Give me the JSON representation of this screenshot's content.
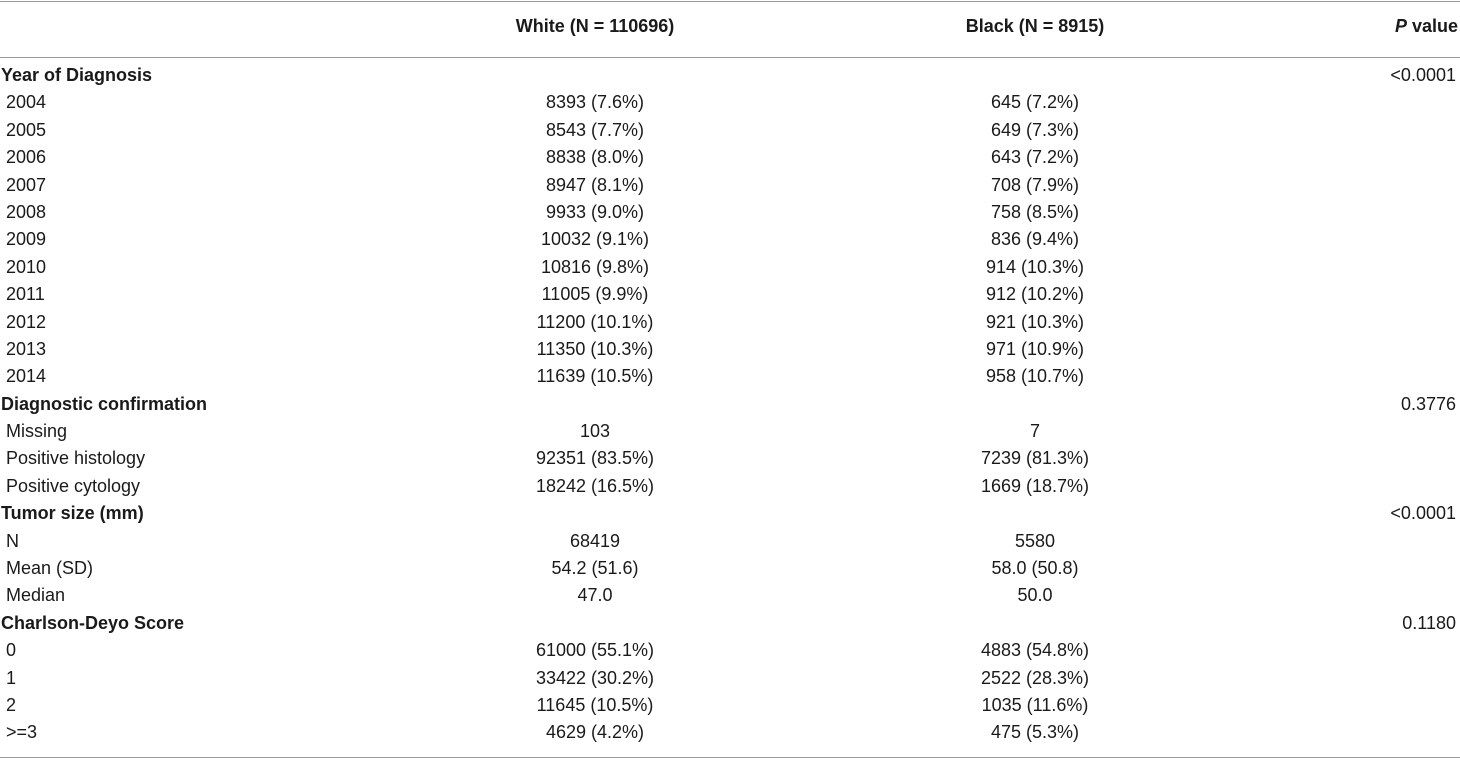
{
  "header": {
    "col_white": "White (N = 110696)",
    "col_black": "Black (N = 8915)",
    "col_p_italic": "P",
    "col_p_rest": " value"
  },
  "rows": [
    {
      "type": "section",
      "label": "Year of Diagnosis",
      "white": "",
      "black": "",
      "p": "<0.0001"
    },
    {
      "type": "item",
      "label": "2004",
      "white": "8393 (7.6%)",
      "black": "645 (7.2%)",
      "p": ""
    },
    {
      "type": "item",
      "label": "2005",
      "white": "8543 (7.7%)",
      "black": "649 (7.3%)",
      "p": ""
    },
    {
      "type": "item",
      "label": "2006",
      "white": "8838 (8.0%)",
      "black": "643 (7.2%)",
      "p": ""
    },
    {
      "type": "item",
      "label": "2007",
      "white": "8947 (8.1%)",
      "black": "708 (7.9%)",
      "p": ""
    },
    {
      "type": "item",
      "label": "2008",
      "white": "9933 (9.0%)",
      "black": "758 (8.5%)",
      "p": ""
    },
    {
      "type": "item",
      "label": "2009",
      "white": "10032 (9.1%)",
      "black": "836 (9.4%)",
      "p": ""
    },
    {
      "type": "item",
      "label": "2010",
      "white": "10816 (9.8%)",
      "black": "914 (10.3%)",
      "p": ""
    },
    {
      "type": "item",
      "label": "2011",
      "white": "11005 (9.9%)",
      "black": "912 (10.2%)",
      "p": ""
    },
    {
      "type": "item",
      "label": "2012",
      "white": "11200 (10.1%)",
      "black": "921 (10.3%)",
      "p": ""
    },
    {
      "type": "item",
      "label": "2013",
      "white": "11350 (10.3%)",
      "black": "971 (10.9%)",
      "p": ""
    },
    {
      "type": "item",
      "label": "2014",
      "white": "11639 (10.5%)",
      "black": "958 (10.7%)",
      "p": ""
    },
    {
      "type": "section",
      "label": "Diagnostic confirmation",
      "white": "",
      "black": "",
      "p": "0.3776"
    },
    {
      "type": "item",
      "label": "Missing",
      "white": "103",
      "black": "7",
      "p": ""
    },
    {
      "type": "item",
      "label": "Positive histology",
      "white": "92351 (83.5%)",
      "black": "7239 (81.3%)",
      "p": ""
    },
    {
      "type": "item",
      "label": "Positive cytology",
      "white": "18242 (16.5%)",
      "black": "1669 (18.7%)",
      "p": ""
    },
    {
      "type": "section",
      "label": "Tumor size (mm)",
      "white": "",
      "black": "",
      "p": "<0.0001"
    },
    {
      "type": "item",
      "label": "N",
      "white": "68419",
      "black": "5580",
      "p": ""
    },
    {
      "type": "item",
      "label": "Mean (SD)",
      "white": "54.2 (51.6)",
      "black": "58.0 (50.8)",
      "p": ""
    },
    {
      "type": "item",
      "label": "Median",
      "white": "47.0",
      "black": "50.0",
      "p": ""
    },
    {
      "type": "section",
      "label": "Charlson-Deyo Score",
      "white": "",
      "black": "",
      "p": "0.1180"
    },
    {
      "type": "item",
      "label": "0",
      "white": "61000 (55.1%)",
      "black": "4883 (54.8%)",
      "p": ""
    },
    {
      "type": "item",
      "label": "1",
      "white": "33422 (30.2%)",
      "black": "2522 (28.3%)",
      "p": ""
    },
    {
      "type": "item",
      "label": "2",
      "white": "11645 (10.5%)",
      "black": "1035 (11.6%)",
      "p": ""
    },
    {
      "type": "item",
      "label": ">=3",
      "white": "4629 (4.2%)",
      "black": "475 (5.3%)",
      "p": ""
    }
  ]
}
